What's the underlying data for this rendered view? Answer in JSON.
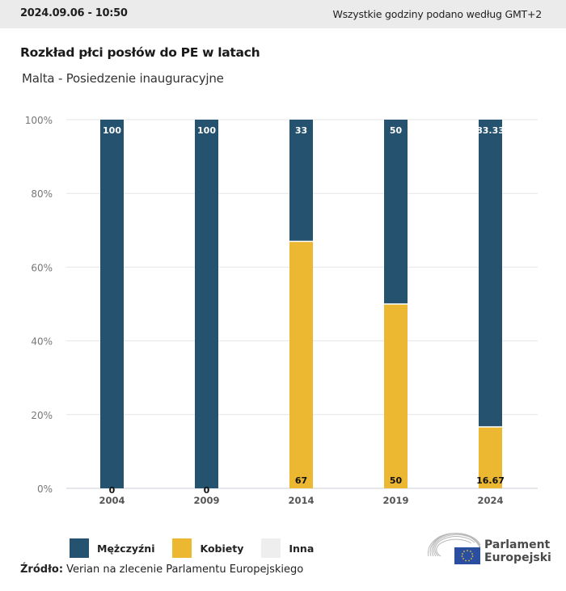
{
  "header": {
    "timestamp": "2024.09.06 - 10:50",
    "timezone_note": "Wszystkie godziny podano według GMT+2"
  },
  "chart_data": {
    "type": "bar",
    "stacked": true,
    "title": "Rozkład płci posłów do PE w latach",
    "subtitle": "Malta - Posiedzenie inauguracyjne",
    "xlabel": "",
    "ylabel": "",
    "categories": [
      "2004",
      "2009",
      "2014",
      "2019",
      "2024"
    ],
    "series": [
      {
        "name": "Kobiety",
        "color": "#ecb731",
        "values": [
          0,
          0,
          67,
          50,
          16.67
        ],
        "labels": [
          "0",
          "0",
          "67",
          "50",
          "16.67"
        ]
      },
      {
        "name": "Mężczyźni",
        "color": "#24526f",
        "values": [
          100,
          100,
          33,
          50,
          83.33
        ],
        "labels": [
          "100",
          "100",
          "33",
          "50",
          "83.33"
        ]
      },
      {
        "name": "Inna",
        "color": "#eeeeee",
        "values": [
          0,
          0,
          0,
          0,
          0
        ]
      }
    ],
    "ylim": [
      0,
      100
    ],
    "yticks": [
      0,
      20,
      40,
      60,
      80,
      100
    ],
    "ytick_labels": [
      "0%",
      "20%",
      "40%",
      "60%",
      "80%",
      "100%"
    ],
    "grid": true,
    "legend_position": "bottom-left"
  },
  "legend": [
    {
      "label": "Mężczyźni",
      "color": "#24526f"
    },
    {
      "label": "Kobiety",
      "color": "#ecb731"
    },
    {
      "label": "Inna",
      "color": "#eeeeee"
    }
  ],
  "footer": {
    "source_label": "Źródło:",
    "source_text": " Verian na zlecenie Parlamentu Europejskiego",
    "logo_line1": "Parlament",
    "logo_line2": "Europejski"
  }
}
